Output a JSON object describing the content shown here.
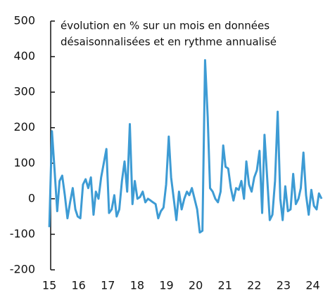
{
  "chart_data": {
    "type": "line",
    "annotation": [
      "évolution en % sur un mois en données",
      "désaisonnalisées et en rythme annualisé"
    ],
    "x": [
      15.0,
      15.09,
      15.18,
      15.27,
      15.35,
      15.44,
      15.53,
      15.62,
      15.71,
      15.8,
      15.89,
      15.97,
      16.06,
      16.15,
      16.24,
      16.33,
      16.42,
      16.51,
      16.59,
      16.68,
      16.77,
      16.86,
      16.95,
      17.04,
      17.13,
      17.22,
      17.3,
      17.39,
      17.48,
      17.57,
      17.66,
      17.75,
      17.84,
      17.92,
      18.01,
      18.1,
      18.19,
      18.28,
      18.37,
      18.46,
      18.54,
      18.63,
      18.72,
      18.81,
      18.9,
      18.99,
      19.08,
      19.16,
      19.25,
      19.34,
      19.43,
      19.52,
      19.61,
      19.7,
      19.78,
      19.87,
      19.96,
      20.05,
      20.14,
      20.23,
      20.32,
      20.41,
      20.49,
      20.58,
      20.67,
      20.76,
      20.85,
      20.94,
      21.02,
      21.11,
      21.2,
      21.29,
      21.38,
      21.47,
      21.56,
      21.65,
      21.73,
      21.82,
      21.91,
      22.0,
      22.09,
      22.18,
      22.27,
      22.35,
      22.44,
      22.53,
      22.62,
      22.71,
      22.8,
      22.89,
      22.97,
      23.06,
      23.15,
      23.24,
      23.33,
      23.42,
      23.51,
      23.59,
      23.68,
      23.77,
      23.86,
      23.95,
      24.04,
      24.13,
      24.21,
      24.3
    ],
    "series": [
      {
        "color": "#3d9bd4",
        "values": [
          -80,
          190,
          80,
          -35,
          50,
          65,
          10,
          -55,
          -10,
          30,
          -30,
          -50,
          -55,
          40,
          55,
          30,
          60,
          -45,
          20,
          0,
          60,
          100,
          140,
          -40,
          -30,
          10,
          -50,
          -30,
          50,
          105,
          20,
          210,
          -15,
          50,
          0,
          5,
          20,
          -10,
          0,
          -5,
          -10,
          -15,
          -55,
          -35,
          -25,
          40,
          175,
          60,
          0,
          -60,
          20,
          -30,
          0,
          20,
          10,
          30,
          0,
          -30,
          -95,
          -90,
          390,
          230,
          30,
          20,
          0,
          -10,
          20,
          150,
          90,
          85,
          30,
          -5,
          30,
          25,
          50,
          0,
          105,
          40,
          20,
          60,
          80,
          135,
          -40,
          180,
          60,
          -60,
          -45,
          50,
          245,
          0,
          -60,
          35,
          -35,
          -30,
          70,
          -15,
          0,
          30,
          130,
          10,
          -45,
          25,
          -20,
          -30,
          15,
          0
        ]
      }
    ],
    "xlim": [
      14.95,
      24.3
    ],
    "xticks": [
      15,
      16,
      17,
      18,
      19,
      20,
      21,
      22,
      23,
      24
    ],
    "ylim": [
      -200,
      500
    ],
    "yticks": [
      -200,
      -100,
      0,
      100,
      200,
      300,
      400,
      500
    ]
  }
}
